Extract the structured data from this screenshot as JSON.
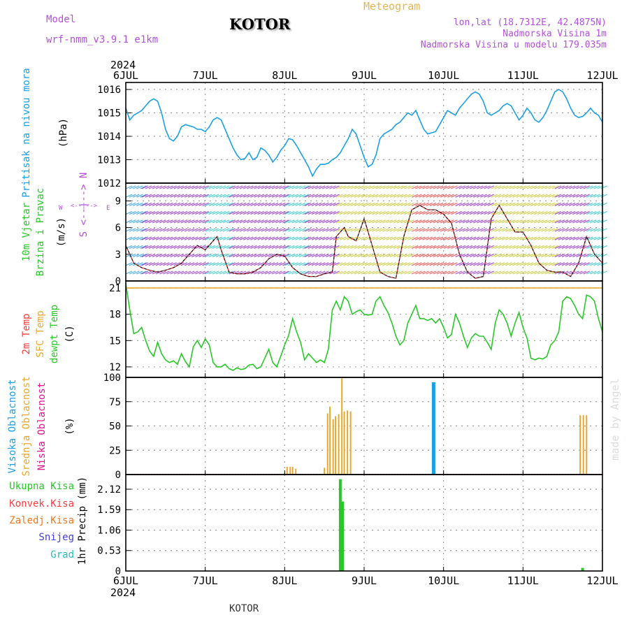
{
  "header": {
    "model_label": "Model",
    "model_name": "wrf-nmm_v3.9.1 e1km",
    "station": "KOTOR",
    "product": "Meteogram",
    "lonlat": "lon,lat (18.7312E, 42.4875N)",
    "elevation": "Nadmorska Visina 1m",
    "model_elevation": "Nadmorska Visina u modelu 179.035m",
    "year_top": "2024",
    "year_bottom": "2024",
    "footer_station": "KOTOR",
    "credit": "made by Angel"
  },
  "colors": {
    "pressure": "#1aa0e6",
    "dewpoint": "#28c828",
    "sfc_temp": "#e6a832",
    "temp2m": "#ff3c3c",
    "high_cloud": "#1aa0e6",
    "mid_cloud": "#e6a832",
    "low_cloud": "#e6148c",
    "precip_total": "#28c828",
    "wind_axis_label": "#b450dc",
    "snow_label": "#4040e0",
    "graupel_label": "#20c0c0",
    "freezing_label": "#f07820"
  },
  "panel_labels": {
    "pressure": {
      "name": "Pritisak na nivou mora",
      "unit": "(hPa)"
    },
    "wind": {
      "line1": "10m Vjetar",
      "line2": "Brzina i Pravac",
      "unit": "(m/s)",
      "compass": [
        "W",
        "<--|-->",
        "E"
      ],
      "compass2": [
        "S",
        "<--|-->",
        "N"
      ]
    },
    "temp": {
      "t2m": "2m Temp",
      "sfc": "SFC Temp",
      "dew": "dewpt Temp",
      "unit": "(C)"
    },
    "cloud": {
      "high": "Visoka Oblacnost",
      "mid": "Srednja Oblacnost",
      "low": "Niska Oblacnost",
      "unit": "(%)"
    },
    "precip": {
      "total": "Ukupna Kisa",
      "convective": "Konvek.Kisa",
      "freezing": "Zaledj.Kisa",
      "snow": "Snijeg",
      "graupel": "Grad",
      "unit": "1hr Precip (mm)"
    }
  },
  "chart_data": [
    {
      "type": "line",
      "id": "pressure",
      "x_ticks": [
        "6JUL",
        "7JUL",
        "8JUL",
        "9JUL",
        "10JUL",
        "11JUL",
        "12JUL"
      ],
      "x_range_days": [
        0,
        6
      ],
      "ylim": [
        1012,
        1016.3
      ],
      "yticks": [
        1012,
        1013,
        1014,
        1015,
        1016
      ],
      "grid": true,
      "series": [
        {
          "name": "Pritisak na nivou mora",
          "x": [
            0,
            0.05,
            0.1,
            0.15,
            0.2,
            0.25,
            0.3,
            0.35,
            0.4,
            0.45,
            0.5,
            0.55,
            0.6,
            0.65,
            0.7,
            0.75,
            0.8,
            0.85,
            0.9,
            0.95,
            1.0,
            1.05,
            1.1,
            1.15,
            1.2,
            1.25,
            1.3,
            1.35,
            1.4,
            1.45,
            1.5,
            1.55,
            1.6,
            1.65,
            1.7,
            1.75,
            1.8,
            1.85,
            1.9,
            1.95,
            2.0,
            2.05,
            2.1,
            2.15,
            2.2,
            2.25,
            2.3,
            2.35,
            2.4,
            2.45,
            2.5,
            2.55,
            2.6,
            2.65,
            2.7,
            2.75,
            2.8,
            2.85,
            2.9,
            2.95,
            3.0,
            3.05,
            3.1,
            3.15,
            3.2,
            3.25,
            3.3,
            3.35,
            3.4,
            3.45,
            3.5,
            3.55,
            3.6,
            3.65,
            3.7,
            3.75,
            3.8,
            3.85,
            3.9,
            3.95,
            4.0,
            4.05,
            4.1,
            4.15,
            4.2,
            4.25,
            4.3,
            4.35,
            4.4,
            4.45,
            4.5,
            4.55,
            4.6,
            4.65,
            4.7,
            4.75,
            4.8,
            4.85,
            4.9,
            4.95,
            5.0,
            5.05,
            5.1,
            5.15,
            5.2,
            5.25,
            5.3,
            5.35,
            5.4,
            5.45,
            5.5,
            5.55,
            5.6,
            5.65,
            5.7,
            5.75,
            5.8,
            5.85,
            5.9,
            5.95,
            6.0
          ],
          "values": [
            1015.2,
            1014.7,
            1014.9,
            1015.0,
            1015.1,
            1015.3,
            1015.5,
            1015.6,
            1015.5,
            1015.0,
            1014.3,
            1013.9,
            1013.8,
            1014.0,
            1014.4,
            1014.5,
            1014.45,
            1014.4,
            1014.3,
            1014.3,
            1014.2,
            1014.4,
            1014.7,
            1014.8,
            1014.7,
            1014.3,
            1013.9,
            1013.5,
            1013.2,
            1013.0,
            1013.05,
            1013.3,
            1013.0,
            1013.1,
            1013.5,
            1013.4,
            1013.2,
            1012.9,
            1013.1,
            1013.4,
            1013.6,
            1013.9,
            1013.85,
            1013.6,
            1013.3,
            1013.0,
            1012.7,
            1012.3,
            1012.6,
            1012.8,
            1012.8,
            1012.85,
            1013.0,
            1013.1,
            1013.3,
            1013.6,
            1013.9,
            1014.3,
            1014.1,
            1013.6,
            1013.1,
            1012.7,
            1012.8,
            1013.2,
            1013.9,
            1014.1,
            1014.2,
            1014.3,
            1014.5,
            1014.6,
            1014.8,
            1015.0,
            1014.9,
            1015.1,
            1014.7,
            1014.3,
            1014.1,
            1014.15,
            1014.2,
            1014.5,
            1014.8,
            1015.1,
            1015.0,
            1014.9,
            1015.2,
            1015.4,
            1015.6,
            1015.8,
            1015.9,
            1015.8,
            1015.5,
            1015.0,
            1014.9,
            1015.0,
            1015.1,
            1015.3,
            1015.4,
            1015.3,
            1015.0,
            1014.7,
            1014.9,
            1015.2,
            1015.0,
            1014.7,
            1014.6,
            1014.8,
            1015.1,
            1015.5,
            1015.9,
            1016.0,
            1015.9,
            1015.6,
            1015.2,
            1014.9,
            1014.8,
            1014.85,
            1015.0,
            1015.2,
            1015.0,
            1014.9,
            1014.6
          ]
        }
      ]
    },
    {
      "type": "line",
      "id": "wind",
      "ylim": [
        0,
        11
      ],
      "yticks": [
        0,
        3,
        6,
        9
      ],
      "grid": true,
      "series": [
        {
          "name": "wind speed",
          "x": [
            0,
            0.1,
            0.2,
            0.3,
            0.4,
            0.5,
            0.6,
            0.7,
            0.8,
            0.9,
            1.0,
            1.1,
            1.15,
            1.2,
            1.3,
            1.4,
            1.5,
            1.6,
            1.7,
            1.8,
            1.9,
            2.0,
            2.1,
            2.2,
            2.3,
            2.4,
            2.5,
            2.6,
            2.65,
            2.7,
            2.75,
            2.8,
            2.9,
            3.0,
            3.1,
            3.2,
            3.3,
            3.4,
            3.5,
            3.6,
            3.7,
            3.8,
            3.9,
            4.0,
            4.1,
            4.2,
            4.3,
            4.4,
            4.5,
            4.6,
            4.7,
            4.8,
            4.9,
            5.0,
            5.1,
            5.2,
            5.3,
            5.4,
            5.5,
            5.6,
            5.7,
            5.8,
            5.9,
            6.0
          ],
          "values": [
            4.0,
            2.0,
            1.5,
            1.2,
            1.0,
            1.2,
            1.5,
            2.0,
            3.0,
            4.0,
            3.5,
            4.5,
            5.0,
            3.5,
            1.0,
            0.8,
            0.8,
            1.0,
            1.5,
            2.5,
            3.0,
            2.8,
            1.5,
            0.8,
            0.5,
            0.5,
            0.8,
            1.0,
            5.0,
            5.5,
            6.0,
            5.0,
            4.5,
            7.0,
            4.0,
            1.0,
            0.5,
            0.3,
            5.0,
            8.0,
            8.5,
            8.0,
            8.0,
            7.5,
            6.5,
            3.0,
            1.0,
            0.3,
            0.5,
            7.0,
            8.5,
            7.0,
            5.5,
            5.5,
            4.0,
            2.0,
            1.2,
            1.0,
            1.0,
            0.5,
            2.0,
            5.0,
            3.0,
            2.0
          ]
        }
      ]
    },
    {
      "type": "line",
      "id": "temp",
      "ylim": [
        10.8,
        21.8
      ],
      "yticks": [
        12,
        15,
        18,
        21
      ],
      "grid": true,
      "series": [
        {
          "name": "SFC Temp",
          "x": [
            0,
            6
          ],
          "values": [
            21,
            21
          ]
        },
        {
          "name": "dewpt Temp",
          "x": [
            0,
            0.05,
            0.1,
            0.15,
            0.2,
            0.25,
            0.3,
            0.35,
            0.4,
            0.45,
            0.5,
            0.55,
            0.6,
            0.65,
            0.7,
            0.75,
            0.8,
            0.85,
            0.9,
            0.95,
            1.0,
            1.05,
            1.1,
            1.15,
            1.2,
            1.25,
            1.3,
            1.35,
            1.4,
            1.45,
            1.5,
            1.55,
            1.6,
            1.65,
            1.7,
            1.75,
            1.8,
            1.85,
            1.9,
            1.95,
            2.0,
            2.05,
            2.1,
            2.15,
            2.2,
            2.25,
            2.3,
            2.35,
            2.4,
            2.45,
            2.5,
            2.55,
            2.6,
            2.65,
            2.7,
            2.75,
            2.8,
            2.85,
            2.9,
            2.95,
            3.0,
            3.05,
            3.1,
            3.15,
            3.2,
            3.25,
            3.3,
            3.35,
            3.4,
            3.45,
            3.5,
            3.55,
            3.6,
            3.65,
            3.7,
            3.75,
            3.8,
            3.85,
            3.9,
            3.95,
            4.0,
            4.05,
            4.1,
            4.15,
            4.2,
            4.25,
            4.3,
            4.35,
            4.4,
            4.45,
            4.5,
            4.55,
            4.6,
            4.65,
            4.7,
            4.75,
            4.8,
            4.85,
            4.9,
            4.95,
            5.0,
            5.05,
            5.1,
            5.15,
            5.2,
            5.25,
            5.3,
            5.35,
            5.4,
            5.45,
            5.5,
            5.55,
            5.6,
            5.65,
            5.7,
            5.75,
            5.8,
            5.85,
            5.9,
            5.95,
            6.0
          ],
          "values": [
            21.5,
            18.5,
            15.8,
            16.0,
            16.5,
            15.0,
            13.8,
            13.2,
            14.8,
            13.5,
            12.8,
            12.5,
            12.7,
            12.3,
            13.5,
            12.6,
            12.0,
            14.3,
            15.0,
            14.2,
            15.2,
            14.5,
            12.5,
            12.0,
            12.0,
            12.3,
            11.8,
            11.6,
            11.9,
            11.7,
            11.8,
            12.2,
            12.3,
            11.8,
            12.0,
            13.0,
            14.0,
            12.5,
            12.0,
            13.2,
            14.5,
            15.6,
            17.5,
            16.0,
            14.8,
            12.8,
            13.5,
            13.0,
            12.5,
            12.8,
            12.5,
            14.0,
            18.5,
            19.5,
            18.5,
            20.0,
            19.5,
            18.0,
            18.3,
            18.5,
            18.0,
            17.9,
            18.0,
            19.5,
            20.0,
            19.0,
            18.2,
            17.0,
            15.5,
            14.5,
            15.0,
            17.0,
            18.0,
            19.0,
            17.5,
            17.5,
            17.3,
            17.5,
            17.0,
            17.5,
            16.5,
            15.3,
            15.7,
            18.0,
            17.0,
            15.5,
            14.2,
            15.3,
            15.8,
            15.5,
            15.5,
            14.8,
            14.0,
            17.0,
            18.5,
            18.0,
            17.0,
            15.5,
            17.0,
            18.2,
            16.5,
            15.3,
            13.0,
            12.8,
            13.0,
            12.9,
            13.2,
            14.5,
            15.0,
            16.0,
            19.5,
            20.0,
            19.8,
            19.0,
            18.0,
            17.5,
            20.2,
            20.0,
            19.5,
            17.5,
            16.0
          ]
        }
      ]
    },
    {
      "type": "bar",
      "id": "cloud",
      "ylim": [
        0,
        100
      ],
      "yticks": [
        0,
        25,
        50,
        75,
        100
      ],
      "grid": true,
      "series": [
        {
          "name": "Srednja Oblacnost",
          "x": [
            2.03,
            2.07,
            2.1,
            2.14,
            2.5,
            2.54,
            2.57,
            2.61,
            2.64,
            2.68,
            2.72,
            2.75,
            2.79,
            2.83,
            5.72,
            5.76,
            5.8
          ],
          "values": [
            8,
            8,
            8,
            6,
            7,
            63,
            70,
            57,
            60,
            62,
            99,
            65,
            66,
            65,
            61,
            61,
            61
          ]
        },
        {
          "name": "Visoka Oblacnost",
          "x": [
            3.87
          ],
          "values": [
            95
          ]
        }
      ]
    },
    {
      "type": "bar",
      "id": "precip",
      "ylim": [
        0,
        2.5
      ],
      "yticks": [
        0,
        0.53,
        1.06,
        1.59,
        2.12
      ],
      "tick_labels": [
        "0",
        "0.53",
        "1.06",
        "1.59",
        "2.12"
      ],
      "grid": true,
      "series": [
        {
          "name": "Ukupna Kisa",
          "x": [
            2.7,
            2.73,
            5.75
          ],
          "values": [
            2.38,
            1.8,
            0.08
          ]
        }
      ]
    }
  ]
}
